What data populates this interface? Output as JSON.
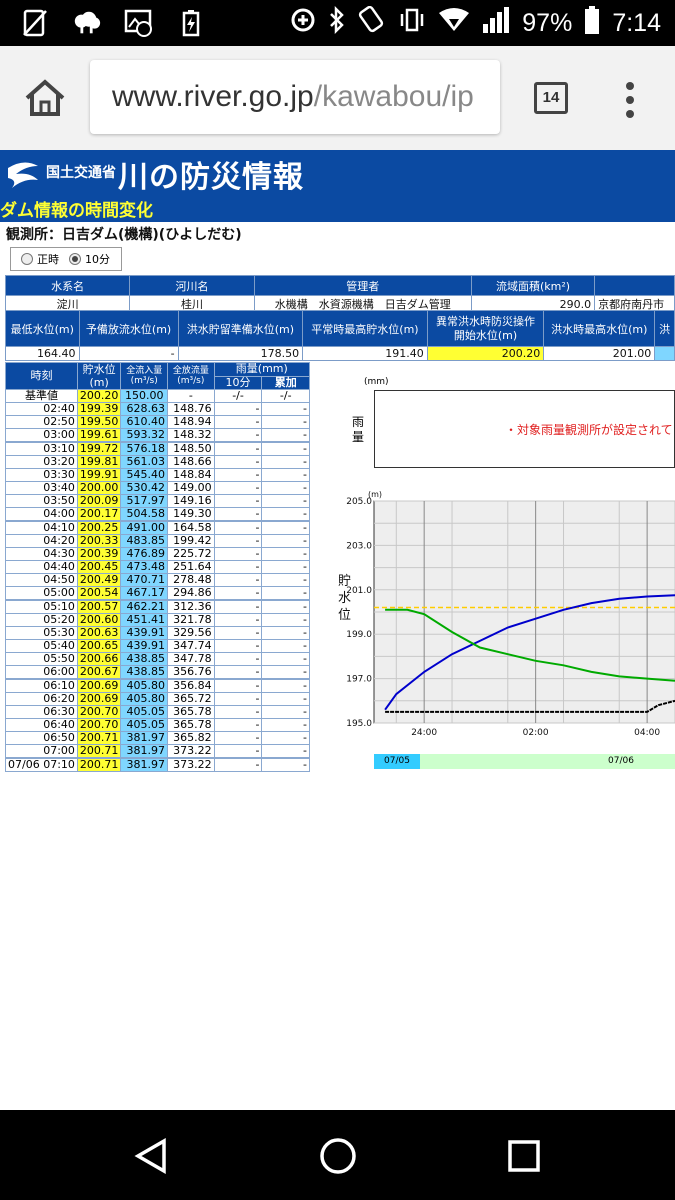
{
  "status_bar": {
    "battery": "97%",
    "time": "7:14",
    "left_icons": [
      "no-sim-icon",
      "sheep-icon",
      "gallery-icon",
      "battery-charging-icon"
    ],
    "right_icons": [
      "data-saver-icon",
      "bluetooth-icon",
      "nfc-icon",
      "vibrate-icon",
      "wifi-icon",
      "signal-icon",
      "battery-icon"
    ]
  },
  "browser": {
    "url_host": "www.river.go.jp",
    "url_path": "/kawabou/ip",
    "tab_count": "14"
  },
  "site": {
    "ministry": "国土交通省",
    "service": "川の防災情報",
    "subtitle": "ダム情報の時間変化",
    "station": "観測所：日吉ダム(機構)(ひよしだむ)",
    "radio_hourly": "正時",
    "radio_10min": "10分"
  },
  "info_table": {
    "row1_headers": [
      "水系名",
      "河川名",
      "管理者",
      "流域面積(km²)",
      ""
    ],
    "row1_values": [
      "淀川",
      "桂川",
      "水機構　水資源機構　日吉ダム管理",
      "290.0",
      "京都府南丹市"
    ],
    "row2_headers": [
      "最低水位(m)",
      "予備放流水位(m)",
      "洪水貯留準備水位(m)",
      "平常時最高貯水位(m)",
      "異常洪水時防災操作",
      "開始水位(m)",
      "洪水時最高水位(m)",
      "洪"
    ],
    "row2_values": [
      "164.40",
      "-",
      "178.50",
      "191.40",
      "200.20",
      "201.00",
      ""
    ]
  },
  "data_table": {
    "h_time": "時刻",
    "h_level": "貯水位",
    "h_level_unit": "(m)",
    "h_inflow": "全流入量",
    "h_inflow_unit": "(m³/s)",
    "h_outflow": "全放流量",
    "h_outflow_unit": "(m³/s)",
    "h_rain": "雨量(mm)",
    "h_rain10": "10分",
    "h_raincum": "累加",
    "ref": {
      "label": "基準値",
      "level": "200.20",
      "inflow": "150.00",
      "outflow": "-",
      "r10": "-/-",
      "rc": "-/-"
    },
    "rows": [
      {
        "t": "02:40",
        "l": "199.39",
        "i": "628.63",
        "o": "148.76",
        "r10": "-",
        "rc": "-"
      },
      {
        "t": "02:50",
        "l": "199.50",
        "i": "610.40",
        "o": "148.94",
        "r10": "-",
        "rc": "-"
      },
      {
        "t": "03:00",
        "l": "199.61",
        "i": "593.32",
        "o": "148.32",
        "r10": "-",
        "rc": "-"
      },
      {
        "t": "03:10",
        "l": "199.72",
        "i": "576.18",
        "o": "148.50",
        "r10": "-",
        "rc": "-"
      },
      {
        "t": "03:20",
        "l": "199.81",
        "i": "561.03",
        "o": "148.66",
        "r10": "-",
        "rc": "-"
      },
      {
        "t": "03:30",
        "l": "199.91",
        "i": "545.40",
        "o": "148.84",
        "r10": "-",
        "rc": "-"
      },
      {
        "t": "03:40",
        "l": "200.00",
        "i": "530.42",
        "o": "149.00",
        "r10": "-",
        "rc": "-"
      },
      {
        "t": "03:50",
        "l": "200.09",
        "i": "517.97",
        "o": "149.16",
        "r10": "-",
        "rc": "-"
      },
      {
        "t": "04:00",
        "l": "200.17",
        "i": "504.58",
        "o": "149.30",
        "r10": "-",
        "rc": "-"
      },
      {
        "t": "04:10",
        "l": "200.25",
        "i": "491.00",
        "o": "164.58",
        "r10": "-",
        "rc": "-"
      },
      {
        "t": "04:20",
        "l": "200.33",
        "i": "483.85",
        "o": "199.42",
        "r10": "-",
        "rc": "-"
      },
      {
        "t": "04:30",
        "l": "200.39",
        "i": "476.89",
        "o": "225.72",
        "r10": "-",
        "rc": "-"
      },
      {
        "t": "04:40",
        "l": "200.45",
        "i": "473.48",
        "o": "251.64",
        "r10": "-",
        "rc": "-"
      },
      {
        "t": "04:50",
        "l": "200.49",
        "i": "470.71",
        "o": "278.48",
        "r10": "-",
        "rc": "-"
      },
      {
        "t": "05:00",
        "l": "200.54",
        "i": "467.17",
        "o": "294.86",
        "r10": "-",
        "rc": "-"
      },
      {
        "t": "05:10",
        "l": "200.57",
        "i": "462.21",
        "o": "312.36",
        "r10": "-",
        "rc": "-"
      },
      {
        "t": "05:20",
        "l": "200.60",
        "i": "451.41",
        "o": "321.78",
        "r10": "-",
        "rc": "-"
      },
      {
        "t": "05:30",
        "l": "200.63",
        "i": "439.91",
        "o": "329.56",
        "r10": "-",
        "rc": "-"
      },
      {
        "t": "05:40",
        "l": "200.65",
        "i": "439.91",
        "o": "347.74",
        "r10": "-",
        "rc": "-"
      },
      {
        "t": "05:50",
        "l": "200.66",
        "i": "438.85",
        "o": "347.78",
        "r10": "-",
        "rc": "-"
      },
      {
        "t": "06:00",
        "l": "200.67",
        "i": "438.85",
        "o": "356.76",
        "r10": "-",
        "rc": "-"
      },
      {
        "t": "06:10",
        "l": "200.69",
        "i": "405.80",
        "o": "356.84",
        "r10": "-",
        "rc": "-"
      },
      {
        "t": "06:20",
        "l": "200.69",
        "i": "405.80",
        "o": "365.72",
        "r10": "-",
        "rc": "-"
      },
      {
        "t": "06:30",
        "l": "200.70",
        "i": "405.05",
        "o": "365.78",
        "r10": "-",
        "rc": "-"
      },
      {
        "t": "06:40",
        "l": "200.70",
        "i": "405.05",
        "o": "365.78",
        "r10": "-",
        "rc": "-"
      },
      {
        "t": "06:50",
        "l": "200.71",
        "i": "381.97",
        "o": "365.82",
        "r10": "-",
        "rc": "-"
      },
      {
        "t": "07:00",
        "l": "200.71",
        "i": "381.97",
        "o": "373.22",
        "r10": "-",
        "rc": "-"
      },
      {
        "t": "07/06 07:10",
        "l": "200.71",
        "i": "381.97",
        "o": "373.22",
        "r10": "-",
        "rc": "-"
      }
    ]
  },
  "rain_panel": {
    "unit": "(mm)",
    "label": "雨量",
    "message": "・対象雨量観測所が設定されてい"
  },
  "chart_data": {
    "type": "line",
    "unit": "(m)",
    "ylabel": "貯水位",
    "ylim": [
      195.0,
      205.0
    ],
    "yticks": [
      "205.0",
      "203.0",
      "201.0",
      "199.0",
      "197.0",
      "195.0"
    ],
    "xticks": [
      {
        "label": "24:00",
        "h": 0
      },
      {
        "label": "02:00",
        "h": 2
      },
      {
        "label": "04:00",
        "h": 4
      }
    ],
    "xlim_hours": [
      -0.9,
      4.5
    ],
    "threshold": 200.2,
    "series": [
      {
        "color": "#0000cc",
        "points": [
          [
            -0.7,
            195.6
          ],
          [
            -0.5,
            196.3
          ],
          [
            0,
            197.3
          ],
          [
            0.5,
            198.1
          ],
          [
            1,
            198.7
          ],
          [
            1.5,
            199.3
          ],
          [
            2,
            199.7
          ],
          [
            2.5,
            200.1
          ],
          [
            3,
            200.4
          ],
          [
            3.5,
            200.6
          ],
          [
            4,
            200.7
          ],
          [
            4.5,
            200.75
          ]
        ]
      },
      {
        "color": "#00aa00",
        "points": [
          [
            -0.7,
            200.1
          ],
          [
            -0.3,
            200.1
          ],
          [
            0,
            199.9
          ],
          [
            0.5,
            199.1
          ],
          [
            1,
            198.4
          ],
          [
            1.5,
            198.1
          ],
          [
            2,
            197.8
          ],
          [
            2.5,
            197.6
          ],
          [
            3,
            197.3
          ],
          [
            3.5,
            197.1
          ],
          [
            4,
            197.0
          ],
          [
            4.5,
            196.9
          ]
        ]
      },
      {
        "color": "#000000",
        "points": [
          [
            -0.7,
            195.5
          ],
          [
            4,
            195.5
          ],
          [
            4.2,
            195.8
          ],
          [
            4.5,
            196.0
          ]
        ]
      }
    ],
    "dates": [
      "07/05",
      "07/06"
    ]
  }
}
